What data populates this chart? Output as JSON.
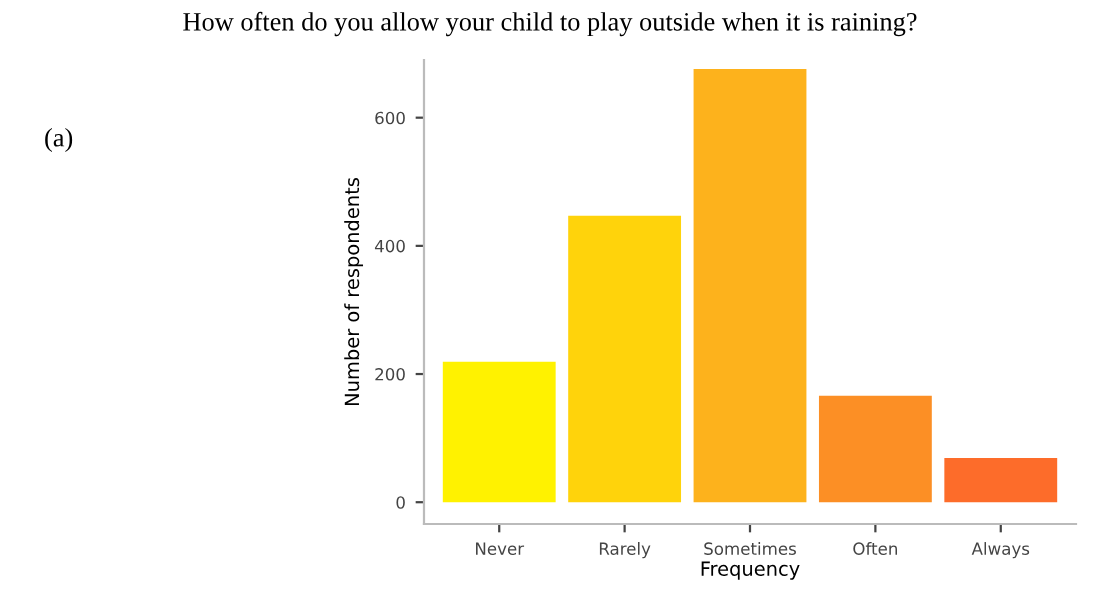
{
  "chart_data": {
    "type": "bar",
    "title": "How often do you allow your child to play outside when it is raining?",
    "annotations": [
      "(a)"
    ],
    "xlabel": "Frequency",
    "ylabel": "Number of respondents",
    "categories": [
      "Never",
      "Rarely",
      "Sometimes",
      "Often",
      "Always"
    ],
    "values": [
      219,
      447,
      676,
      166,
      69
    ],
    "colors": [
      "#fff200",
      "#ffd30b",
      "#fdb21c",
      "#fc8f25",
      "#fd6c2a"
    ],
    "ylim": [
      -34,
      690
    ],
    "yticks": [
      0,
      200,
      400,
      600
    ],
    "grid": false
  }
}
